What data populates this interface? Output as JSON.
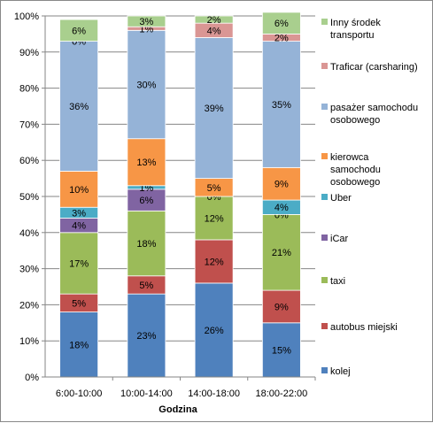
{
  "chart_data": {
    "type": "bar",
    "stacked": true,
    "percent": true,
    "categories": [
      "6:00-10:00",
      "10:00-14:00",
      "14:00-18:00",
      "18:00-22:00"
    ],
    "xlabel": "Godzina",
    "ylabel": "",
    "ylim": [
      0,
      100
    ],
    "yticks": [
      "0%",
      "10%",
      "20%",
      "30%",
      "40%",
      "50%",
      "60%",
      "70%",
      "80%",
      "90%",
      "100%"
    ],
    "grid": "horizontal",
    "legend_position": "right",
    "series": [
      {
        "name": "kolej",
        "color": "#4F81BD",
        "values": [
          18,
          23,
          26,
          15
        ],
        "labels": [
          "18%",
          "23%",
          "26%",
          "15%"
        ]
      },
      {
        "name": "autobus miejski",
        "color": "#C0504D",
        "values": [
          5,
          5,
          12,
          9
        ],
        "labels": [
          "5%",
          "5%",
          "12%",
          "9%"
        ]
      },
      {
        "name": "taxi",
        "color": "#9BBB59",
        "values": [
          17,
          18,
          12,
          21
        ],
        "labels": [
          "17%",
          "18%",
          "12%",
          "21%"
        ]
      },
      {
        "name": "iCar",
        "color": "#8064A2",
        "values": [
          4,
          6,
          0,
          0
        ],
        "labels": [
          "4%",
          "6%",
          "",
          "0%"
        ]
      },
      {
        "name": "Uber",
        "color": "#4BACC6",
        "values": [
          3,
          1,
          0,
          4
        ],
        "labels": [
          "3%",
          "1%",
          "0%",
          "4%"
        ]
      },
      {
        "name": "kierowca samochodu osobowego",
        "color": "#F79646",
        "values": [
          10,
          13,
          5,
          9
        ],
        "labels": [
          "10%",
          "13%",
          "5%",
          "9%"
        ]
      },
      {
        "name": "pasażer samochodu osobowego",
        "color": "#95B3D7",
        "values": [
          36,
          30,
          39,
          35
        ],
        "labels": [
          "36%",
          "30%",
          "39%",
          "35%"
        ]
      },
      {
        "name": "Traficar (carsharing)",
        "color": "#DA9694",
        "values": [
          0,
          1,
          4,
          2
        ],
        "labels": [
          "0%",
          "1%",
          "4%",
          "2%"
        ]
      },
      {
        "name": "Inny środek transportu",
        "color": "#A9CF8E",
        "values": [
          6,
          3,
          2,
          6
        ],
        "labels": [
          "6%",
          "3%",
          "2%",
          "6%"
        ]
      }
    ],
    "legend": [
      {
        "lines": [
          "Inny środek",
          "transportu"
        ],
        "color": "#A9CF8E"
      },
      {
        "lines": [
          "Traficar (carsharing)"
        ],
        "color": "#DA9694"
      },
      {
        "lines": [
          "pasażer samochodu",
          "osobowego"
        ],
        "color": "#95B3D7"
      },
      {
        "lines": [
          "kierowca",
          "samochodu",
          "osobowego"
        ],
        "color": "#F79646"
      },
      {
        "lines": [
          "Uber"
        ],
        "color": "#4BACC6"
      },
      {
        "lines": [
          "iCar"
        ],
        "color": "#8064A2"
      },
      {
        "lines": [
          "taxi"
        ],
        "color": "#9BBB59"
      },
      {
        "lines": [
          "autobus miejski"
        ],
        "color": "#C0504D"
      },
      {
        "lines": [
          "kolej"
        ],
        "color": "#4F81BD"
      }
    ]
  }
}
